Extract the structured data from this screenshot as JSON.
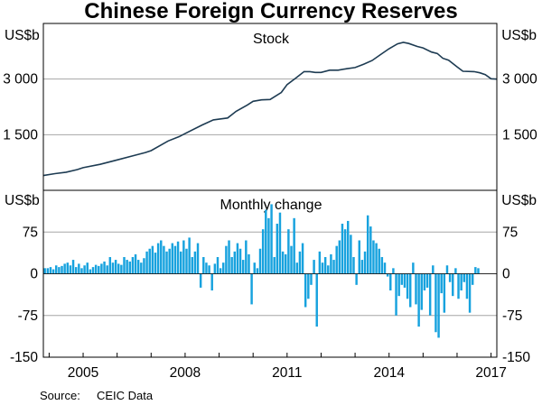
{
  "chart_data": {
    "type": "line+bar",
    "title": "Chinese Foreign Currency Reserves",
    "source_label": "Source:",
    "source_value": "CEIC Data",
    "x_ticks": [
      "2005",
      "2008",
      "2011",
      "2014",
      "2017"
    ],
    "x_range": [
      2003.83,
      2017.17
    ],
    "panels": [
      {
        "title": "Stock",
        "type": "line",
        "unit": "US$b",
        "ylim": [
          0,
          4500
        ],
        "y_ticks": [
          1500,
          3000
        ],
        "y_tick_labels": [
          "1 500",
          "3 000"
        ],
        "series": [
          {
            "color": "#1d3b52",
            "points": [
              [
                2003.83,
                400
              ],
              [
                2004.17,
                450
              ],
              [
                2004.5,
                490
              ],
              [
                2004.83,
                560
              ],
              [
                2005.0,
                610
              ],
              [
                2005.5,
                700
              ],
              [
                2006.0,
                820
              ],
              [
                2006.5,
                940
              ],
              [
                2006.83,
                1020
              ],
              [
                2007.0,
                1070
              ],
              [
                2007.5,
                1330
              ],
              [
                2007.83,
                1450
              ],
              [
                2008.0,
                1530
              ],
              [
                2008.5,
                1760
              ],
              [
                2008.83,
                1900
              ],
              [
                2009.0,
                1920
              ],
              [
                2009.25,
                1950
              ],
              [
                2009.5,
                2130
              ],
              [
                2009.83,
                2300
              ],
              [
                2010.0,
                2400
              ],
              [
                2010.25,
                2440
              ],
              [
                2010.5,
                2450
              ],
              [
                2010.83,
                2640
              ],
              [
                2011.0,
                2850
              ],
              [
                2011.25,
                3020
              ],
              [
                2011.5,
                3200
              ],
              [
                2011.67,
                3200
              ],
              [
                2011.83,
                3180
              ],
              [
                2012.0,
                3180
              ],
              [
                2012.25,
                3240
              ],
              [
                2012.5,
                3240
              ],
              [
                2012.75,
                3280
              ],
              [
                2013.0,
                3310
              ],
              [
                2013.25,
                3400
              ],
              [
                2013.5,
                3500
              ],
              [
                2013.75,
                3660
              ],
              [
                2014.0,
                3820
              ],
              [
                2014.25,
                3950
              ],
              [
                2014.42,
                3990
              ],
              [
                2014.58,
                3960
              ],
              [
                2014.83,
                3880
              ],
              [
                2015.0,
                3840
              ],
              [
                2015.25,
                3730
              ],
              [
                2015.42,
                3690
              ],
              [
                2015.58,
                3560
              ],
              [
                2015.75,
                3510
              ],
              [
                2016.0,
                3330
              ],
              [
                2016.17,
                3210
              ],
              [
                2016.5,
                3200
              ],
              [
                2016.67,
                3170
              ],
              [
                2016.83,
                3120
              ],
              [
                2017.0,
                3010
              ],
              [
                2017.17,
                3000
              ]
            ]
          }
        ]
      },
      {
        "title": "Monthly change",
        "type": "bar",
        "unit": "US$b",
        "ylim": [
          -150,
          150
        ],
        "y_ticks": [
          -150,
          -75,
          0,
          75
        ],
        "y_tick_labels": [
          "-150",
          "-75",
          "0",
          "75"
        ],
        "series": [
          {
            "color": "#17a2de",
            "x_start": 2003.875,
            "x_step": 0.08333,
            "values": [
              10,
              10,
              12,
              8,
              15,
              12,
              14,
              18,
              20,
              15,
              25,
              12,
              18,
              10,
              15,
              20,
              8,
              12,
              16,
              14,
              18,
              22,
              15,
              30,
              20,
              25,
              18,
              16,
              30,
              25,
              22,
              30,
              35,
              25,
              20,
              28,
              40,
              45,
              50,
              38,
              55,
              60,
              50,
              40,
              45,
              55,
              50,
              58,
              40,
              60,
              45,
              65,
              30,
              40,
              55,
              -25,
              30,
              20,
              15,
              -30,
              18,
              30,
              10,
              20,
              50,
              60,
              30,
              40,
              55,
              45,
              25,
              60,
              35,
              -55,
              20,
              10,
              45,
              80,
              115,
              100,
              125,
              30,
              90,
              110,
              40,
              35,
              80,
              50,
              100,
              20,
              40,
              55,
              -60,
              -45,
              -20,
              25,
              -95,
              40,
              20,
              30,
              15,
              35,
              25,
              50,
              60,
              90,
              80,
              95,
              70,
              30,
              -20,
              60,
              25,
              40,
              105,
              85,
              60,
              55,
              45,
              30,
              20,
              -5,
              -30,
              10,
              -75,
              -40,
              -20,
              -25,
              -45,
              -60,
              20,
              -55,
              -95,
              -65,
              -30,
              -25,
              -75,
              15,
              -105,
              -115,
              -35,
              -70,
              15,
              -15,
              -40,
              10,
              -45,
              -30,
              -15,
              -45,
              -70,
              -20,
              12,
              10
            ]
          }
        ]
      }
    ]
  }
}
